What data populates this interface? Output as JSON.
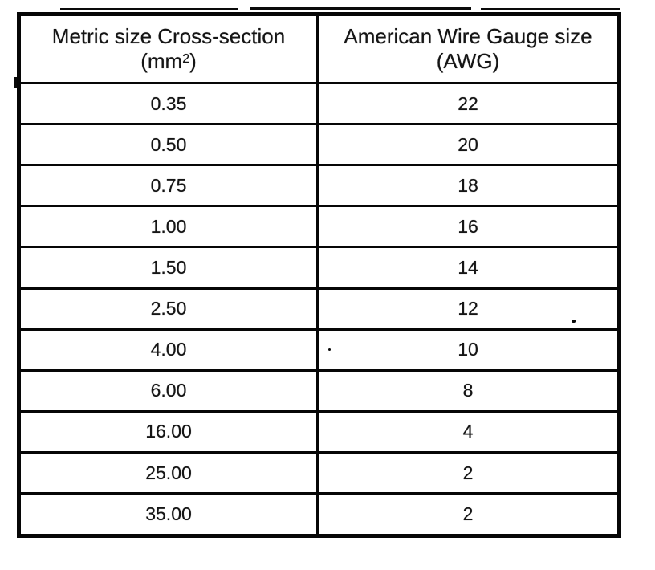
{
  "page": {
    "paper_color": "#ffffff",
    "ink_color": "#151515",
    "border_color": "#060606"
  },
  "table": {
    "columns": [
      {
        "title": "Metric size Cross-section",
        "unit_pre": "(mm",
        "unit_sup": "2",
        "unit_post": ")"
      },
      {
        "title": "American Wire Gauge size",
        "unit": "(AWG)"
      }
    ],
    "rows": [
      {
        "metric": "0.35",
        "awg": "22"
      },
      {
        "metric": "0.50",
        "awg": "20"
      },
      {
        "metric": "0.75",
        "awg": "18"
      },
      {
        "metric": "1.00",
        "awg": "16"
      },
      {
        "metric": "1.50",
        "awg": "14"
      },
      {
        "metric": "2.50",
        "awg": "12"
      },
      {
        "metric": "4.00",
        "awg": "10"
      },
      {
        "metric": "6.00",
        "awg": "8"
      },
      {
        "metric": "16.00",
        "awg": "4"
      },
      {
        "metric": "25.00",
        "awg": "2"
      },
      {
        "metric": "35.00",
        "awg": "2"
      }
    ]
  }
}
